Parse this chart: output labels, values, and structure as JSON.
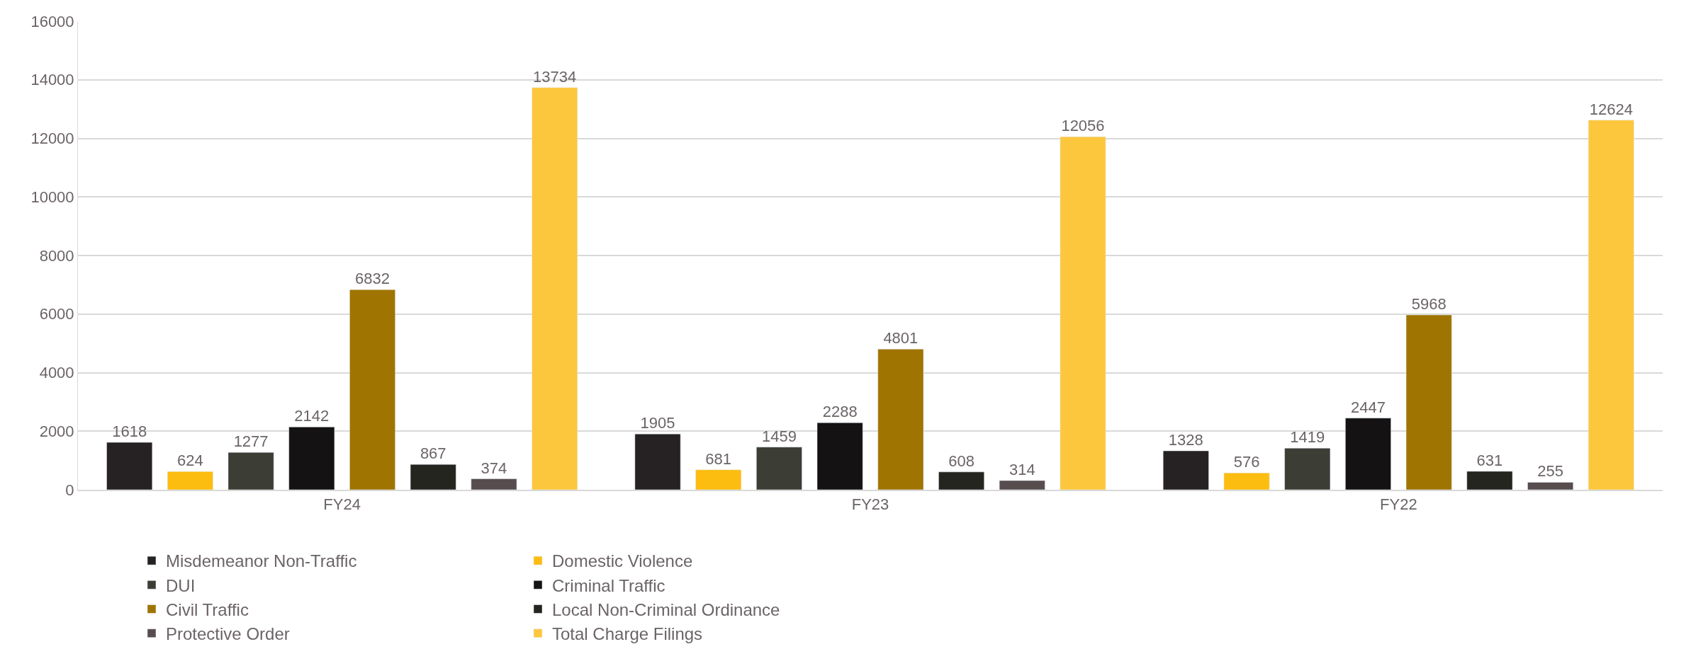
{
  "chart_data": {
    "type": "bar",
    "categories": [
      "FY24",
      "FY23",
      "FY22"
    ],
    "series": [
      {
        "name": "Misdemeanor Non-Traffic",
        "color": "#262122",
        "values": [
          1618,
          1905,
          1328
        ]
      },
      {
        "name": "Domestic Violence",
        "color": "#fdbd10",
        "values": [
          624,
          681,
          576
        ]
      },
      {
        "name": "DUI",
        "color": "#3c3d35",
        "values": [
          1277,
          1459,
          1419
        ]
      },
      {
        "name": "Criminal Traffic",
        "color": "#141213",
        "values": [
          2142,
          2288,
          2447
        ]
      },
      {
        "name": "Civil Traffic",
        "color": "#a07400",
        "values": [
          6832,
          4801,
          5968
        ]
      },
      {
        "name": "Local Non-Criminal Ordinance",
        "color": "#25251f",
        "values": [
          867,
          608,
          631
        ]
      },
      {
        "name": "Protective Order",
        "color": "#574c4e",
        "values": [
          374,
          314,
          255
        ]
      },
      {
        "name": "Total Charge Filings",
        "color": "#fdc73d",
        "values": [
          13734,
          12056,
          12624
        ]
      }
    ],
    "ylim": [
      0,
      16000
    ],
    "yticks": [
      0,
      2000,
      4000,
      6000,
      8000,
      10000,
      12000,
      14000,
      16000
    ],
    "grid": "y",
    "legend": "bottom",
    "data_labels": true
  }
}
